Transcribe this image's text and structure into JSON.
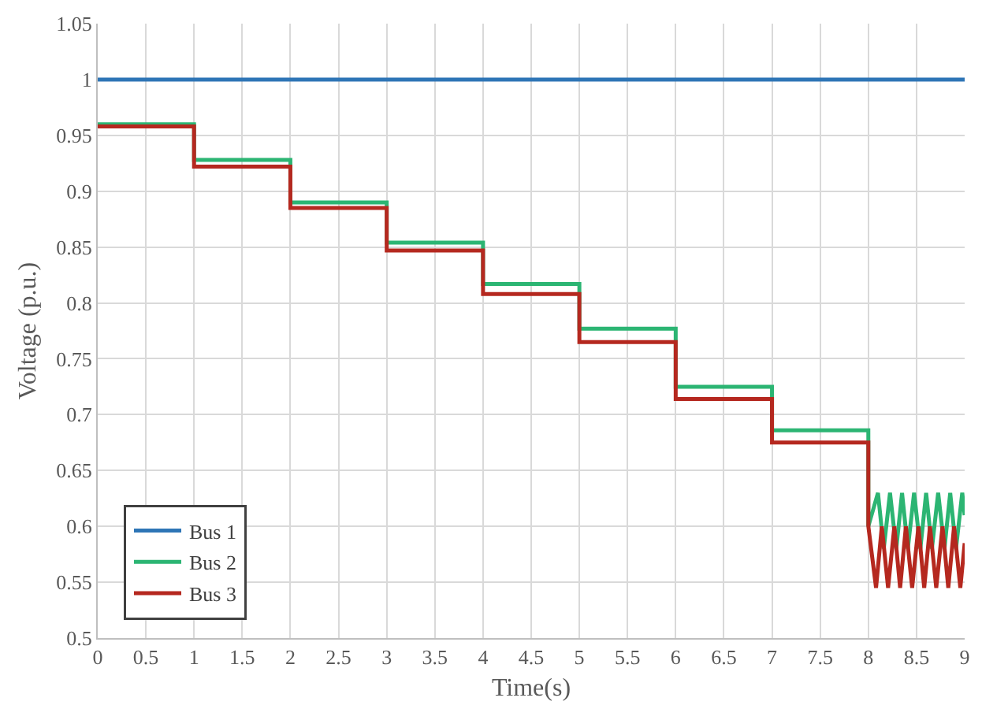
{
  "chart_data": {
    "type": "line",
    "xlabel": "Time(s)",
    "ylabel": "Voltage (p.u.)",
    "xlim": [
      0,
      9
    ],
    "xticks": [
      0,
      0.5,
      1,
      1.5,
      2,
      2.5,
      3,
      3.5,
      4,
      4.5,
      5,
      5.5,
      6,
      6.5,
      7,
      7.5,
      8,
      8.5,
      9
    ],
    "ylim": [
      0.5,
      1.05
    ],
    "yticks": [
      0.5,
      0.55,
      0.6,
      0.65,
      0.7,
      0.75,
      0.8,
      0.85,
      0.9,
      0.95,
      1,
      1.05
    ],
    "grid": true,
    "legend": "bottom left",
    "marker": "none",
    "line_style": "solid",
    "series": [
      {
        "name": "Bus 1",
        "color": "#2e75b6",
        "x": [
          0,
          9
        ],
        "values": [
          1,
          1
        ]
      },
      {
        "name": "Bus 2",
        "color": "#2cb573",
        "x": [
          0,
          1,
          1,
          2,
          2,
          3,
          3,
          4,
          4,
          5,
          5,
          6,
          6,
          7,
          7,
          8,
          8,
          8.1,
          8.16,
          8.225,
          8.29,
          8.35,
          8.41,
          8.475,
          8.54,
          8.6,
          8.66,
          8.725,
          8.79,
          8.85,
          8.91,
          8.975,
          9
        ],
        "values": [
          0.96,
          0.96,
          0.928,
          0.928,
          0.89,
          0.89,
          0.854,
          0.854,
          0.817,
          0.817,
          0.777,
          0.777,
          0.725,
          0.725,
          0.686,
          0.686,
          0.6,
          0.63,
          0.58,
          0.63,
          0.58,
          0.63,
          0.58,
          0.63,
          0.58,
          0.63,
          0.58,
          0.63,
          0.58,
          0.63,
          0.58,
          0.63,
          0.61
        ]
      },
      {
        "name": "Bus 3",
        "color": "#b5281f",
        "x": [
          0,
          1,
          1,
          2,
          2,
          3,
          3,
          4,
          4,
          5,
          5,
          6,
          6,
          7,
          7,
          8,
          8,
          8.08,
          8.14,
          8.205,
          8.27,
          8.33,
          8.39,
          8.455,
          8.52,
          8.58,
          8.64,
          8.705,
          8.77,
          8.83,
          8.89,
          8.955,
          9
        ],
        "values": [
          0.958,
          0.958,
          0.922,
          0.922,
          0.885,
          0.885,
          0.847,
          0.847,
          0.808,
          0.808,
          0.765,
          0.765,
          0.714,
          0.714,
          0.675,
          0.675,
          0.6,
          0.545,
          0.6,
          0.545,
          0.6,
          0.545,
          0.6,
          0.545,
          0.6,
          0.545,
          0.6,
          0.545,
          0.6,
          0.545,
          0.6,
          0.545,
          0.585
        ]
      }
    ]
  }
}
